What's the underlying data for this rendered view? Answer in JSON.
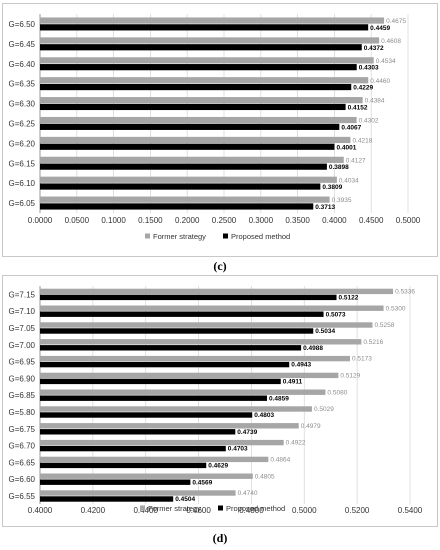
{
  "colors": {
    "former": "#a6a6a6",
    "proposed": "#000000",
    "grid": "#d9d9d9",
    "axis": "#888888",
    "former_label": "#8c8c8c"
  },
  "chart_data": [
    {
      "type": "bar",
      "orientation": "horizontal",
      "caption": "(c)",
      "categories": [
        "G=6.50",
        "G=6.45",
        "G=6.40",
        "G=6.35",
        "G=6.30",
        "G=6.25",
        "G=6.20",
        "G=6.15",
        "G=6.10",
        "G=6.05"
      ],
      "series": [
        {
          "name": "Former strategy",
          "values": [
            0.4675,
            0.4608,
            0.4534,
            0.446,
            0.4384,
            0.4302,
            0.4218,
            0.4127,
            0.4034,
            0.3935
          ],
          "labels": [
            "0.4675",
            "0.4608",
            "0.4534",
            "0.4460",
            "0.4384",
            "0.4302",
            "0.4218",
            "0.4127",
            "0.4034",
            "0.3935"
          ]
        },
        {
          "name": "Proposed method",
          "values": [
            0.4459,
            0.4372,
            0.4303,
            0.4229,
            0.4152,
            0.4067,
            0.4001,
            0.3898,
            0.3809,
            0.3713
          ],
          "labels": [
            "0.4459",
            "0.4372",
            "0.4303",
            "0.4229",
            "0.4152",
            "0.4067",
            "0.4001",
            "0.3898",
            "0.3809",
            "0.3713"
          ]
        }
      ],
      "xlim": [
        0,
        0.5
      ],
      "xticks": [
        0,
        0.05,
        0.1,
        0.15,
        0.2,
        0.25,
        0.3,
        0.35,
        0.4,
        0.45,
        0.5
      ],
      "xtick_labels": [
        "0.0000",
        "0.0500",
        "0.1000",
        "0.1500",
        "0.2000",
        "0.2500",
        "0.3000",
        "0.3500",
        "0.4000",
        "0.4500",
        "0.5000"
      ],
      "grid": true,
      "legend": "bottom"
    },
    {
      "type": "bar",
      "orientation": "horizontal",
      "caption": "(d)",
      "categories": [
        "G=7.15",
        "G=7.10",
        "G=7.05",
        "G=7.00",
        "G=6.95",
        "G=6.90",
        "G=6.85",
        "G=5.80",
        "G=6.75",
        "G=6.70",
        "G=6.65",
        "G=6.60",
        "G=6.55"
      ],
      "series": [
        {
          "name": "Former strategy",
          "values": [
            0.5336,
            0.53,
            0.5258,
            0.5216,
            0.5173,
            0.5129,
            0.508,
            0.5029,
            0.4979,
            0.4922,
            0.4864,
            0.4805,
            0.474
          ],
          "labels": [
            "0.5336",
            "0.5300",
            "0.5258",
            "0.5216",
            "0.5173",
            "0.5129",
            "0.5080",
            "0.5029",
            "0.4979",
            "0.4922",
            "0.4864",
            "0.4805",
            "0.4740"
          ]
        },
        {
          "name": "Proposed method",
          "values": [
            0.5122,
            0.5073,
            0.5034,
            0.4988,
            0.4943,
            0.4911,
            0.4859,
            0.4803,
            0.4739,
            0.4703,
            0.4629,
            0.4569,
            0.4504
          ],
          "labels": [
            "0.5122",
            "0.5073",
            "0.5034",
            "0.4988",
            "0.4943",
            "0.4911",
            "0.4859",
            "0.4803",
            "0.4739",
            "0.4703",
            "0.4629",
            "0.4569",
            "0.4504"
          ]
        }
      ],
      "xlim": [
        0.4,
        0.54
      ],
      "xticks": [
        0.4,
        0.42,
        0.44,
        0.46,
        0.48,
        0.5,
        0.52,
        0.54
      ],
      "xtick_labels": [
        "0.4000",
        "0.4200",
        "0.4400",
        "0.4600",
        "0.4800",
        "0.5000",
        "0.5200",
        "0.5400"
      ],
      "grid": true,
      "legend": "bottom"
    }
  ]
}
